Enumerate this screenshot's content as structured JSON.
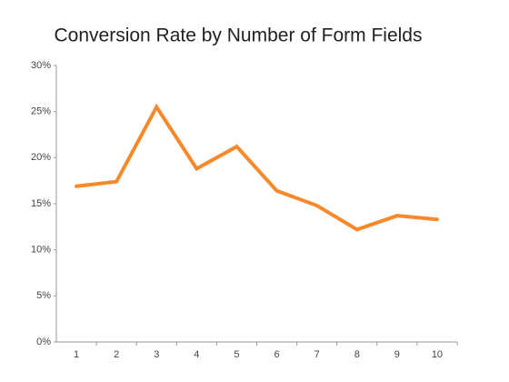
{
  "chart_data": {
    "type": "line",
    "title": "Conversion Rate by Number of Form Fields",
    "categories": [
      "1",
      "2",
      "3",
      "4",
      "5",
      "6",
      "7",
      "8",
      "9",
      "10"
    ],
    "series": [
      {
        "name": "Conversion Rate",
        "color": "#f7892b",
        "values": [
          16.9,
          17.4,
          25.5,
          18.8,
          21.2,
          16.4,
          14.8,
          12.2,
          13.7,
          13.3
        ]
      }
    ],
    "ylim": [
      0,
      30
    ],
    "yticks": [
      {
        "value": 0,
        "label": "0%"
      },
      {
        "value": 5,
        "label": "5%"
      },
      {
        "value": 10,
        "label": "10%"
      },
      {
        "value": 15,
        "label": "15%"
      },
      {
        "value": 20,
        "label": "20%"
      },
      {
        "value": 25,
        "label": "25%"
      },
      {
        "value": 30,
        "label": "30%"
      }
    ],
    "grid": false
  }
}
